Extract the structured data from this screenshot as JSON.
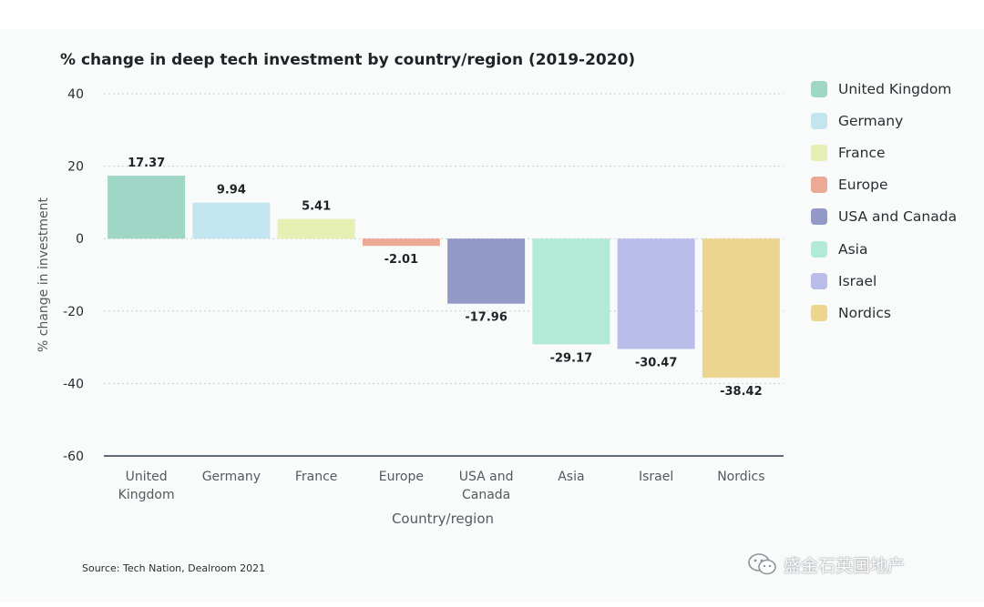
{
  "chart_data": {
    "type": "bar",
    "title": "% change in deep tech investment by country/region (2019-2020)",
    "xlabel": "Country/region",
    "ylabel": "% change in investment",
    "categories": [
      [
        "United",
        "Kingdom"
      ],
      [
        "Germany"
      ],
      [
        "France"
      ],
      [
        "Europe"
      ],
      [
        "USA and",
        "Canada"
      ],
      [
        "Asia"
      ],
      [
        "Israel"
      ],
      [
        "Nordics"
      ]
    ],
    "values": [
      17.37,
      9.94,
      5.41,
      -2.01,
      -17.96,
      -29.17,
      -30.47,
      -38.42
    ],
    "value_labels": [
      "17.37",
      "9.94",
      "5.41",
      "-2.01",
      "-17.96",
      "-29.17",
      "-30.47",
      "-38.42"
    ],
    "colors": [
      "#9fd6c6",
      "#c3e5ef",
      "#e6efb4",
      "#eba996",
      "#9399c7",
      "#b3ead7",
      "#babde9",
      "#ecd58f"
    ],
    "ylim": [
      -60,
      40
    ],
    "yticks": [
      40,
      20,
      0,
      -20,
      -40,
      -60
    ],
    "grid": true,
    "legend": {
      "position": "right",
      "entries": [
        "United Kingdom",
        "Germany",
        "France",
        "Europe",
        "USA and Canada",
        "Asia",
        "Israel",
        "Nordics"
      ]
    }
  },
  "source": "Source: Tech Nation, Dealroom 2021",
  "watermark": "盛金石英国地产"
}
